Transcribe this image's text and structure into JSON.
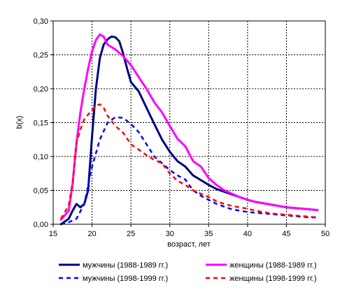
{
  "chart_data": {
    "type": "line",
    "title": "",
    "xlabel": "возраст, лет",
    "ylabel": "b(x)",
    "xlim": [
      15,
      50
    ],
    "ylim": [
      0,
      0.3
    ],
    "xticks": [
      "15",
      "20",
      "25",
      "30",
      "35",
      "40",
      "45",
      "50"
    ],
    "yticks": [
      "0,00",
      "0,05",
      "0,10",
      "0,15",
      "0,20",
      "0,25",
      "0,30"
    ],
    "grid": true,
    "legend_position": "bottom",
    "series": [
      {
        "name": "мужчины (1988-1989 гг.)",
        "color": "#000080",
        "dash": "solid",
        "points": [
          [
            16,
            0.0
          ],
          [
            17,
            0.008
          ],
          [
            17.5,
            0.02
          ],
          [
            18,
            0.03
          ],
          [
            18.5,
            0.025
          ],
          [
            19,
            0.03
          ],
          [
            19.5,
            0.05
          ],
          [
            20,
            0.13
          ],
          [
            20.5,
            0.2
          ],
          [
            21,
            0.245
          ],
          [
            21.5,
            0.265
          ],
          [
            22,
            0.273
          ],
          [
            22.5,
            0.277
          ],
          [
            23,
            0.276
          ],
          [
            23.5,
            0.27
          ],
          [
            24,
            0.252
          ],
          [
            24.5,
            0.23
          ],
          [
            25,
            0.21
          ],
          [
            26,
            0.196
          ],
          [
            27,
            0.172
          ],
          [
            28,
            0.148
          ],
          [
            29,
            0.125
          ],
          [
            30,
            0.107
          ],
          [
            31,
            0.093
          ],
          [
            32,
            0.085
          ],
          [
            33,
            0.072
          ],
          [
            34,
            0.065
          ],
          [
            35,
            0.058
          ],
          [
            36,
            0.052
          ],
          [
            37,
            0.048
          ],
          [
            38,
            0.044
          ],
          [
            39,
            0.04
          ],
          [
            40,
            0.036
          ],
          [
            41,
            0.033
          ],
          [
            42,
            0.031
          ],
          [
            43,
            0.029
          ],
          [
            44,
            0.027
          ],
          [
            45,
            0.025
          ],
          [
            46,
            0.024
          ],
          [
            47,
            0.023
          ],
          [
            48,
            0.022
          ],
          [
            49,
            0.021
          ]
        ]
      },
      {
        "name": "женщины (1988-1989 гг.)",
        "color": "#FF00FF",
        "dash": "solid",
        "points": [
          [
            16,
            0.007
          ],
          [
            17,
            0.02
          ],
          [
            17.5,
            0.06
          ],
          [
            18,
            0.12
          ],
          [
            18.5,
            0.165
          ],
          [
            19,
            0.2
          ],
          [
            19.5,
            0.23
          ],
          [
            20,
            0.255
          ],
          [
            20.5,
            0.272
          ],
          [
            21,
            0.28
          ],
          [
            21.5,
            0.277
          ],
          [
            22,
            0.265
          ],
          [
            23,
            0.258
          ],
          [
            24,
            0.248
          ],
          [
            25,
            0.235
          ],
          [
            26,
            0.217
          ],
          [
            27,
            0.2
          ],
          [
            28,
            0.18
          ],
          [
            29,
            0.165
          ],
          [
            30,
            0.145
          ],
          [
            31,
            0.126
          ],
          [
            32,
            0.115
          ],
          [
            33,
            0.093
          ],
          [
            34,
            0.085
          ],
          [
            35,
            0.068
          ],
          [
            36,
            0.058
          ],
          [
            37,
            0.05
          ],
          [
            38,
            0.045
          ],
          [
            39,
            0.04
          ],
          [
            40,
            0.036
          ],
          [
            41,
            0.033
          ],
          [
            42,
            0.031
          ],
          [
            43,
            0.029
          ],
          [
            44,
            0.027
          ],
          [
            45,
            0.025
          ],
          [
            46,
            0.024
          ],
          [
            47,
            0.023
          ],
          [
            48,
            0.022
          ],
          [
            49,
            0.021
          ]
        ]
      },
      {
        "name": "мужчины (1998-1999 гг.)",
        "color": "#0000FF",
        "dash": "dashed",
        "points": [
          [
            16,
            0.0
          ],
          [
            17,
            0.003
          ],
          [
            18,
            0.008
          ],
          [
            19,
            0.03
          ],
          [
            20,
            0.085
          ],
          [
            21,
            0.125
          ],
          [
            22,
            0.15
          ],
          [
            23,
            0.158
          ],
          [
            24,
            0.157
          ],
          [
            25,
            0.148
          ],
          [
            26,
            0.136
          ],
          [
            27,
            0.118
          ],
          [
            28,
            0.1
          ],
          [
            29,
            0.09
          ],
          [
            30,
            0.08
          ],
          [
            31,
            0.072
          ],
          [
            32,
            0.066
          ],
          [
            33,
            0.05
          ],
          [
            34,
            0.042
          ],
          [
            35,
            0.036
          ],
          [
            36,
            0.03
          ],
          [
            37,
            0.026
          ],
          [
            38,
            0.022
          ],
          [
            39,
            0.02
          ],
          [
            40,
            0.018
          ],
          [
            41,
            0.017
          ],
          [
            42,
            0.016
          ],
          [
            43,
            0.015
          ],
          [
            44,
            0.014
          ],
          [
            45,
            0.013
          ],
          [
            46,
            0.012
          ],
          [
            47,
            0.011
          ],
          [
            48,
            0.01
          ],
          [
            49,
            0.01
          ]
        ]
      },
      {
        "name": "женщины (1998-1999 гг.)",
        "color": "#FF0000",
        "dash": "dashed",
        "points": [
          [
            16,
            0.008
          ],
          [
            17,
            0.028
          ],
          [
            17.5,
            0.06
          ],
          [
            18,
            0.12
          ],
          [
            18.5,
            0.14
          ],
          [
            19,
            0.155
          ],
          [
            19.5,
            0.162
          ],
          [
            20,
            0.168
          ],
          [
            20.5,
            0.175
          ],
          [
            21,
            0.177
          ],
          [
            21.5,
            0.172
          ],
          [
            22,
            0.16
          ],
          [
            23,
            0.145
          ],
          [
            24,
            0.135
          ],
          [
            25,
            0.118
          ],
          [
            26,
            0.11
          ],
          [
            27,
            0.102
          ],
          [
            28,
            0.095
          ],
          [
            29,
            0.09
          ],
          [
            30,
            0.075
          ],
          [
            31,
            0.064
          ],
          [
            32,
            0.058
          ],
          [
            33,
            0.05
          ],
          [
            34,
            0.045
          ],
          [
            35,
            0.04
          ],
          [
            36,
            0.034
          ],
          [
            37,
            0.03
          ],
          [
            38,
            0.027
          ],
          [
            39,
            0.025
          ],
          [
            40,
            0.023
          ],
          [
            41,
            0.02
          ],
          [
            42,
            0.018
          ],
          [
            43,
            0.016
          ],
          [
            44,
            0.015
          ],
          [
            45,
            0.014
          ],
          [
            46,
            0.013
          ],
          [
            47,
            0.012
          ],
          [
            48,
            0.011
          ],
          [
            49,
            0.01
          ]
        ]
      }
    ]
  }
}
